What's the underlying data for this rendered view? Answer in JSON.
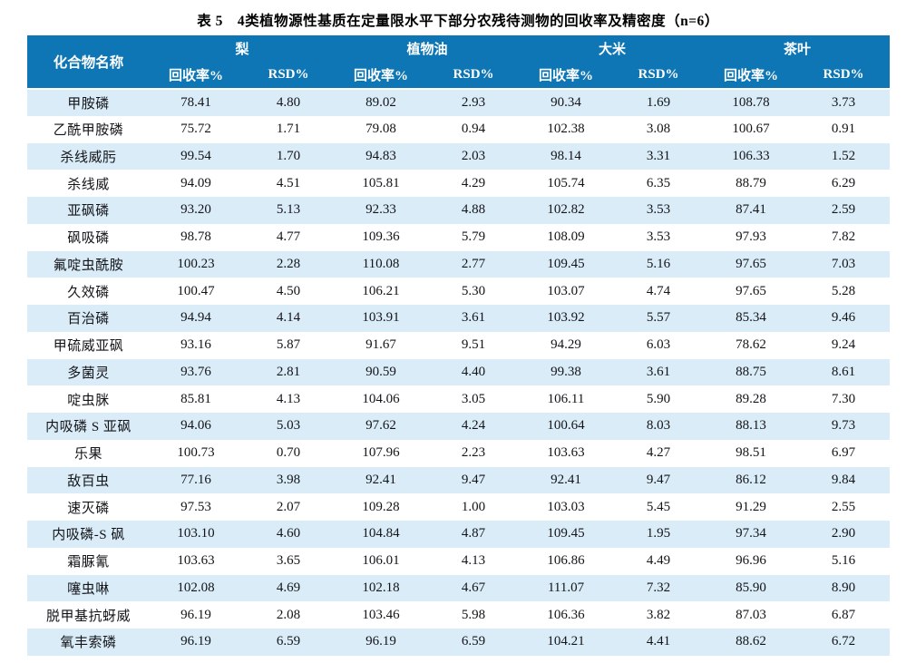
{
  "title": "表 5　4类植物源性基质在定量限水平下部分农残待测物的回收率及精密度（n=6）",
  "colors": {
    "header_bg": "#0E76B4",
    "header_text": "#FFFFFF",
    "stripe_bg": "#D9ECF8",
    "body_text": "#141418"
  },
  "table": {
    "name_header": "化合物名称",
    "groups": [
      {
        "label": "梨"
      },
      {
        "label": "植物油"
      },
      {
        "label": "大米"
      },
      {
        "label": "茶叶"
      }
    ],
    "sub_headers": [
      "回收率%",
      "RSD%"
    ],
    "rows": [
      {
        "name": "甲胺磷",
        "values": [
          "78.41",
          "4.80",
          "89.02",
          "2.93",
          "90.34",
          "1.69",
          "108.78",
          "3.73"
        ]
      },
      {
        "name": "乙酰甲胺磷",
        "values": [
          "75.72",
          "1.71",
          "79.08",
          "0.94",
          "102.38",
          "3.08",
          "100.67",
          "0.91"
        ]
      },
      {
        "name": "杀线威肟",
        "values": [
          "99.54",
          "1.70",
          "94.83",
          "2.03",
          "98.14",
          "3.31",
          "106.33",
          "1.52"
        ]
      },
      {
        "name": "杀线威",
        "values": [
          "94.09",
          "4.51",
          "105.81",
          "4.29",
          "105.74",
          "6.35",
          "88.79",
          "6.29"
        ]
      },
      {
        "name": "亚砜磷",
        "values": [
          "93.20",
          "5.13",
          "92.33",
          "4.88",
          "102.82",
          "3.53",
          "87.41",
          "2.59"
        ]
      },
      {
        "name": "砜吸磷",
        "values": [
          "98.78",
          "4.77",
          "109.36",
          "5.79",
          "108.09",
          "3.53",
          "97.93",
          "7.82"
        ]
      },
      {
        "name": "氟啶虫酰胺",
        "values": [
          "100.23",
          "2.28",
          "110.08",
          "2.77",
          "109.45",
          "5.16",
          "97.65",
          "7.03"
        ]
      },
      {
        "name": "久效磷",
        "values": [
          "100.47",
          "4.50",
          "106.21",
          "5.30",
          "103.07",
          "4.74",
          "97.65",
          "5.28"
        ]
      },
      {
        "name": "百治磷",
        "values": [
          "94.94",
          "4.14",
          "103.91",
          "3.61",
          "103.92",
          "5.57",
          "85.34",
          "9.46"
        ]
      },
      {
        "name": "甲硫威亚砜",
        "values": [
          "93.16",
          "5.87",
          "91.67",
          "9.51",
          "94.29",
          "6.03",
          "78.62",
          "9.24"
        ]
      },
      {
        "name": "多菌灵",
        "values": [
          "93.76",
          "2.81",
          "90.59",
          "4.40",
          "99.38",
          "3.61",
          "88.75",
          "8.61"
        ]
      },
      {
        "name": "啶虫脒",
        "values": [
          "85.81",
          "4.13",
          "104.06",
          "3.05",
          "106.11",
          "5.90",
          "89.28",
          "7.30"
        ]
      },
      {
        "name": "内吸磷 S 亚砜",
        "values": [
          "94.06",
          "5.03",
          "97.62",
          "4.24",
          "100.64",
          "8.03",
          "88.13",
          "9.73"
        ]
      },
      {
        "name": "乐果",
        "values": [
          "100.73",
          "0.70",
          "107.96",
          "2.23",
          "103.63",
          "4.27",
          "98.51",
          "6.97"
        ]
      },
      {
        "name": "敌百虫",
        "values": [
          "77.16",
          "3.98",
          "92.41",
          "9.47",
          "92.41",
          "9.47",
          "86.12",
          "9.84"
        ]
      },
      {
        "name": "速灭磷",
        "values": [
          "97.53",
          "2.07",
          "109.28",
          "1.00",
          "103.03",
          "5.45",
          "91.29",
          "2.55"
        ]
      },
      {
        "name": "内吸磷-S 砜",
        "values": [
          "103.10",
          "4.60",
          "104.84",
          "4.87",
          "109.45",
          "1.95",
          "97.34",
          "2.90"
        ]
      },
      {
        "name": "霜脲氰",
        "values": [
          "103.63",
          "3.65",
          "106.01",
          "4.13",
          "106.86",
          "4.49",
          "96.96",
          "5.16"
        ]
      },
      {
        "name": "噻虫啉",
        "values": [
          "102.08",
          "4.69",
          "102.18",
          "4.67",
          "111.07",
          "7.32",
          "85.90",
          "8.90"
        ]
      },
      {
        "name": "脱甲基抗蚜威",
        "values": [
          "96.19",
          "2.08",
          "103.46",
          "5.98",
          "106.36",
          "3.82",
          "87.03",
          "6.87"
        ]
      },
      {
        "name": "氧丰索磷",
        "values": [
          "96.19",
          "6.59",
          "96.19",
          "6.59",
          "104.21",
          "4.41",
          "88.62",
          "6.72"
        ]
      }
    ]
  }
}
